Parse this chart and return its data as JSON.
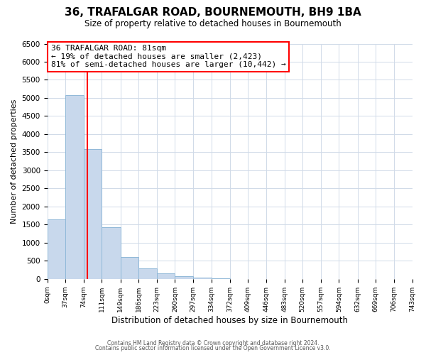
{
  "title": "36, TRAFALGAR ROAD, BOURNEMOUTH, BH9 1BA",
  "subtitle": "Size of property relative to detached houses in Bournemouth",
  "xlabel": "Distribution of detached houses by size in Bournemouth",
  "ylabel": "Number of detached properties",
  "bin_edges": [
    0,
    37,
    74,
    111,
    149,
    186,
    223,
    260,
    297,
    334,
    372,
    409,
    446,
    483,
    520,
    557,
    594,
    632,
    669,
    706,
    743
  ],
  "bar_heights": [
    1650,
    5080,
    3580,
    1420,
    610,
    300,
    150,
    80,
    30,
    10,
    0,
    0,
    0,
    0,
    0,
    0,
    0,
    0,
    0,
    0
  ],
  "bar_color": "#c8d8ec",
  "bar_edge_color": "#90b8d8",
  "vline_x": 81,
  "vline_color": "red",
  "annotation_title": "36 TRAFALGAR ROAD: 81sqm",
  "annotation_line1": "← 19% of detached houses are smaller (2,423)",
  "annotation_line2": "81% of semi-detached houses are larger (10,442) →",
  "annotation_box_color": "white",
  "annotation_box_edge_color": "red",
  "ylim": [
    0,
    6500
  ],
  "yticks": [
    0,
    500,
    1000,
    1500,
    2000,
    2500,
    3000,
    3500,
    4000,
    4500,
    5000,
    5500,
    6000,
    6500
  ],
  "footer_line1": "Contains HM Land Registry data © Crown copyright and database right 2024.",
  "footer_line2": "Contains public sector information licensed under the Open Government Licence v3.0.",
  "bg_color": "#ffffff",
  "grid_color": "#d0dae8"
}
